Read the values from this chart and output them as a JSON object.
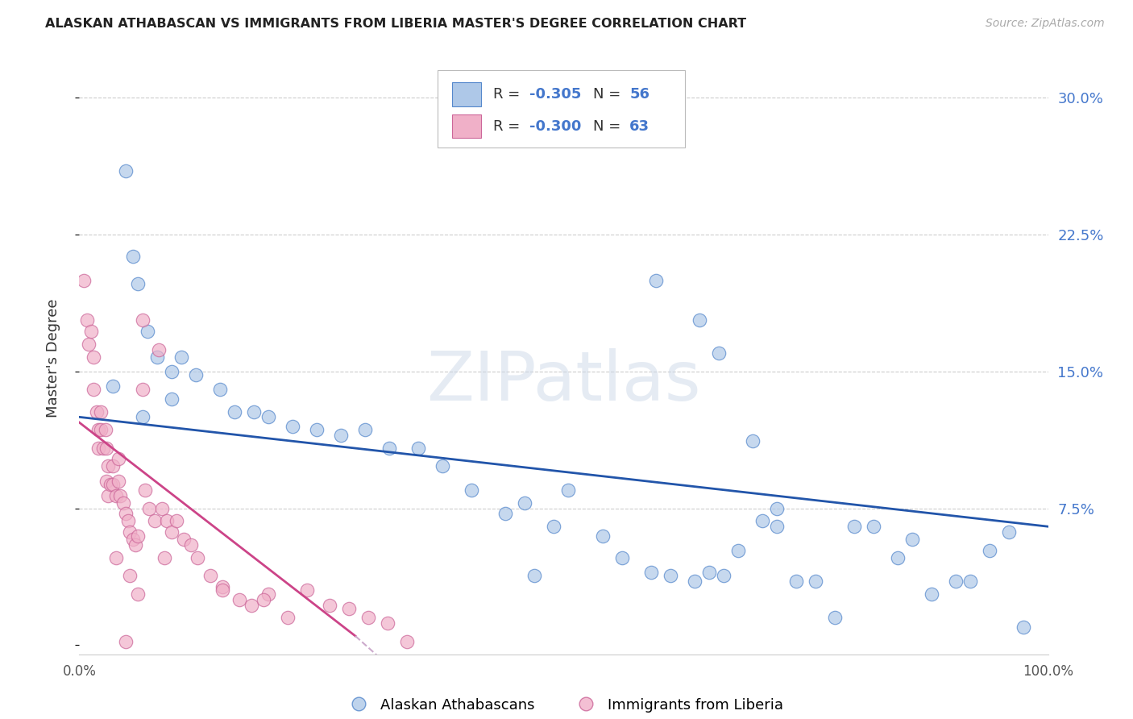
{
  "title": "ALASKAN ATHABASCAN VS IMMIGRANTS FROM LIBERIA MASTER'S DEGREE CORRELATION CHART",
  "source": "Source: ZipAtlas.com",
  "ylabel": "Master's Degree",
  "color_blue_face": "#aec8e8",
  "color_blue_edge": "#5588cc",
  "color_pink_face": "#f0b0c8",
  "color_pink_edge": "#cc6699",
  "color_line_blue": "#2255aa",
  "color_line_pink": "#cc4488",
  "color_line_pink_ext": "#ccaacc",
  "color_ytick": "#4477cc",
  "color_grid": "#cccccc",
  "color_text_r": "#4477cc",
  "color_text_n": "#4477cc",
  "xlim": [
    0.0,
    1.0
  ],
  "ylim": [
    -0.005,
    0.32
  ],
  "yticks": [
    0.0,
    0.075,
    0.15,
    0.225,
    0.3
  ],
  "ytick_labels": [
    "",
    "7.5%",
    "15.0%",
    "22.5%",
    "30.0%"
  ],
  "blue_line": [
    0.0,
    0.125,
    1.0,
    0.065
  ],
  "pink_line_solid": [
    0.0,
    0.122,
    0.285,
    0.005
  ],
  "pink_line_dashed": [
    0.285,
    0.005,
    0.38,
    -0.04
  ],
  "blue_x": [
    0.048,
    0.055,
    0.06,
    0.07,
    0.08,
    0.095,
    0.105,
    0.095,
    0.065,
    0.035,
    0.12,
    0.145,
    0.16,
    0.18,
    0.195,
    0.22,
    0.245,
    0.27,
    0.295,
    0.32,
    0.35,
    0.375,
    0.405,
    0.44,
    0.46,
    0.49,
    0.505,
    0.54,
    0.56,
    0.59,
    0.61,
    0.635,
    0.65,
    0.665,
    0.68,
    0.705,
    0.72,
    0.74,
    0.76,
    0.78,
    0.8,
    0.82,
    0.845,
    0.86,
    0.88,
    0.905,
    0.92,
    0.94,
    0.96,
    0.975,
    0.595,
    0.64,
    0.66,
    0.695,
    0.72,
    0.47
  ],
  "blue_y": [
    0.26,
    0.213,
    0.198,
    0.172,
    0.158,
    0.15,
    0.158,
    0.135,
    0.125,
    0.142,
    0.148,
    0.14,
    0.128,
    0.128,
    0.125,
    0.12,
    0.118,
    0.115,
    0.118,
    0.108,
    0.108,
    0.098,
    0.085,
    0.072,
    0.078,
    0.065,
    0.085,
    0.06,
    0.048,
    0.04,
    0.038,
    0.035,
    0.04,
    0.038,
    0.052,
    0.068,
    0.065,
    0.035,
    0.035,
    0.015,
    0.065,
    0.065,
    0.048,
    0.058,
    0.028,
    0.035,
    0.035,
    0.052,
    0.062,
    0.01,
    0.2,
    0.178,
    0.16,
    0.112,
    0.075,
    0.038
  ],
  "pink_x": [
    0.005,
    0.008,
    0.01,
    0.012,
    0.015,
    0.015,
    0.018,
    0.02,
    0.02,
    0.022,
    0.022,
    0.025,
    0.027,
    0.028,
    0.028,
    0.03,
    0.03,
    0.032,
    0.035,
    0.035,
    0.038,
    0.04,
    0.04,
    0.042,
    0.045,
    0.048,
    0.05,
    0.052,
    0.055,
    0.058,
    0.06,
    0.065,
    0.068,
    0.072,
    0.078,
    0.085,
    0.09,
    0.095,
    0.1,
    0.108,
    0.115,
    0.122,
    0.135,
    0.148,
    0.165,
    0.178,
    0.195,
    0.215,
    0.235,
    0.258,
    0.278,
    0.298,
    0.318,
    0.338,
    0.065,
    0.082,
    0.048,
    0.052,
    0.06,
    0.038,
    0.088,
    0.148,
    0.19
  ],
  "pink_y": [
    0.2,
    0.178,
    0.165,
    0.172,
    0.158,
    0.14,
    0.128,
    0.118,
    0.108,
    0.128,
    0.118,
    0.108,
    0.118,
    0.108,
    0.09,
    0.082,
    0.098,
    0.088,
    0.098,
    0.088,
    0.082,
    0.102,
    0.09,
    0.082,
    0.078,
    0.072,
    0.068,
    0.062,
    0.058,
    0.055,
    0.06,
    0.14,
    0.085,
    0.075,
    0.068,
    0.075,
    0.068,
    0.062,
    0.068,
    0.058,
    0.055,
    0.048,
    0.038,
    0.032,
    0.025,
    0.022,
    0.028,
    0.015,
    0.03,
    0.022,
    0.02,
    0.015,
    0.012,
    0.002,
    0.178,
    0.162,
    0.002,
    0.038,
    0.028,
    0.048,
    0.048,
    0.03,
    0.025
  ],
  "watermark_text": "ZIPatlas",
  "legend_r1": "-0.305",
  "legend_n1": "56",
  "legend_r2": "-0.300",
  "legend_n2": "63"
}
